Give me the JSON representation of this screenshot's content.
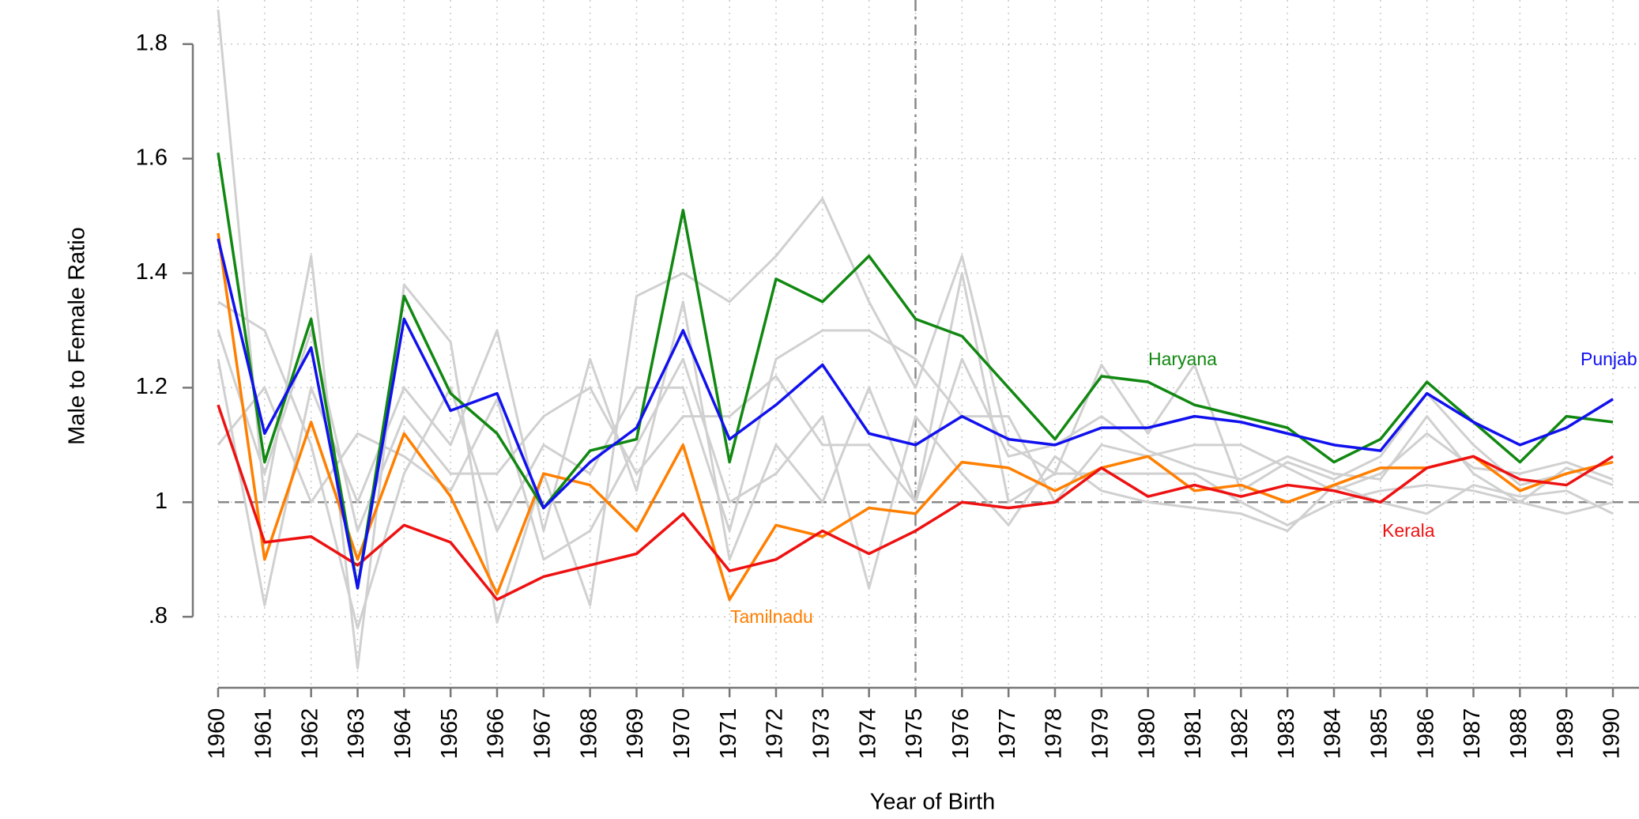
{
  "chart_data": {
    "type": "line",
    "x_label": "Year of Birth",
    "y_label": "Male to Female Ratio",
    "x": [
      1960,
      1961,
      1962,
      1963,
      1964,
      1965,
      1966,
      1967,
      1968,
      1969,
      1970,
      1971,
      1972,
      1973,
      1974,
      1975,
      1976,
      1977,
      1978,
      1979,
      1980,
      1981,
      1982,
      1983,
      1984,
      1985,
      1986,
      1987,
      1988,
      1989,
      1990
    ],
    "xlim": [
      1960,
      1990
    ],
    "xticks": [
      1960,
      1961,
      1962,
      1963,
      1964,
      1965,
      1966,
      1967,
      1968,
      1969,
      1970,
      1971,
      1972,
      1973,
      1974,
      1975,
      1976,
      1977,
      1978,
      1979,
      1980,
      1981,
      1982,
      1983,
      1984,
      1985,
      1986,
      1987,
      1988,
      1989,
      1990
    ],
    "ylim": [
      0.676,
      1.877
    ],
    "yticks": [
      {
        "value": 0.8,
        "label": ".8"
      },
      1,
      1.2,
      1.4,
      1.6,
      1.8
    ],
    "grid": true,
    "vline": 1975,
    "hline": 1,
    "series": [
      {
        "color": "#d0d0d0",
        "values": [
          1.86,
          1.0,
          1.43,
          0.71,
          1.38,
          1.28,
          0.79,
          1.05,
          0.82,
          1.36,
          1.4,
          1.35,
          1.43,
          1.53,
          1.35,
          1.2,
          1.43,
          1.1,
          1.05,
          1.24,
          1.12,
          1.24,
          1.02,
          1.07,
          1.04,
          1.08,
          1.19,
          1.1,
          1.03,
          1.05,
          1.07
        ]
      },
      {
        "color": "#d0d0d0",
        "values": [
          1.25,
          0.82,
          1.2,
          1.0,
          1.2,
          1.1,
          1.3,
          0.95,
          1.25,
          1.02,
          1.35,
          0.9,
          1.1,
          1.0,
          1.2,
          1.0,
          1.4,
          1.0,
          1.05,
          1.05,
          1.05,
          1.05,
          1.0,
          0.96,
          1.0,
          1.02,
          1.03,
          1.02,
          1.0,
          0.98,
          1.0
        ]
      },
      {
        "color": "#d0d0d0",
        "values": [
          1.35,
          1.3,
          1.1,
          0.78,
          1.05,
          1.2,
          0.95,
          1.1,
          1.05,
          1.2,
          1.2,
          0.95,
          1.25,
          1.3,
          1.3,
          1.25,
          1.15,
          1.15,
          1.0,
          1.1,
          1.08,
          1.1,
          1.1,
          1.06,
          1.02,
          1.05,
          1.12,
          1.06,
          1.05,
          1.07,
          1.04
        ]
      },
      {
        "color": "#d0d0d0",
        "values": [
          1.1,
          1.2,
          1.0,
          1.12,
          1.08,
          1.02,
          1.18,
          0.9,
          0.95,
          1.1,
          1.25,
          1.0,
          1.05,
          1.15,
          0.85,
          1.15,
          1.05,
          0.96,
          1.08,
          1.02,
          1.0,
          0.99,
          0.98,
          0.95,
          1.03,
          1.0,
          0.98,
          1.03,
          1.01,
          1.02,
          0.98
        ]
      },
      {
        "color": "#d0d0d0",
        "values": [
          1.3,
          1.05,
          1.3,
          0.95,
          1.15,
          1.05,
          1.05,
          1.15,
          1.2,
          1.05,
          1.15,
          1.15,
          1.22,
          1.1,
          1.1,
          1.0,
          1.25,
          1.08,
          1.1,
          1.15,
          1.09,
          1.06,
          1.04,
          1.08,
          1.05,
          1.04,
          1.15,
          1.05,
          1.0,
          1.06,
          1.03
        ]
      },
      {
        "name": "Tamilnadu",
        "color": "#ff7f00",
        "values": [
          1.47,
          0.9,
          1.14,
          0.9,
          1.12,
          1.01,
          0.84,
          1.05,
          1.03,
          0.95,
          1.1,
          0.83,
          0.96,
          0.94,
          0.99,
          0.98,
          1.07,
          1.06,
          1.02,
          1.06,
          1.08,
          1.02,
          1.03,
          1.0,
          1.03,
          1.06,
          1.06,
          1.08,
          1.02,
          1.05,
          1.07
        ]
      },
      {
        "name": "Kerala",
        "color": "#ee1111",
        "values": [
          1.17,
          0.93,
          0.94,
          0.89,
          0.96,
          0.93,
          0.83,
          0.87,
          0.89,
          0.91,
          0.98,
          0.88,
          0.9,
          0.95,
          0.91,
          0.95,
          1.0,
          0.99,
          1.0,
          1.06,
          1.01,
          1.03,
          1.01,
          1.03,
          1.02,
          1.0,
          1.06,
          1.08,
          1.04,
          1.03,
          1.08
        ]
      },
      {
        "name": "Haryana",
        "color": "#118811",
        "values": [
          1.61,
          1.07,
          1.32,
          0.85,
          1.36,
          1.19,
          1.12,
          0.99,
          1.09,
          1.11,
          1.51,
          1.07,
          1.39,
          1.35,
          1.43,
          1.32,
          1.29,
          1.2,
          1.11,
          1.22,
          1.21,
          1.17,
          1.15,
          1.13,
          1.07,
          1.11,
          1.21,
          1.14,
          1.07,
          1.15,
          1.14
        ]
      },
      {
        "name": "Punjab",
        "color": "#1111ee",
        "values": [
          1.46,
          1.12,
          1.27,
          0.85,
          1.32,
          1.16,
          1.19,
          0.99,
          1.07,
          1.13,
          1.3,
          1.11,
          1.17,
          1.24,
          1.12,
          1.1,
          1.15,
          1.11,
          1.1,
          1.13,
          1.13,
          1.15,
          1.14,
          1.12,
          1.1,
          1.09,
          1.19,
          1.14,
          1.1,
          1.13,
          1.18
        ]
      }
    ]
  }
}
